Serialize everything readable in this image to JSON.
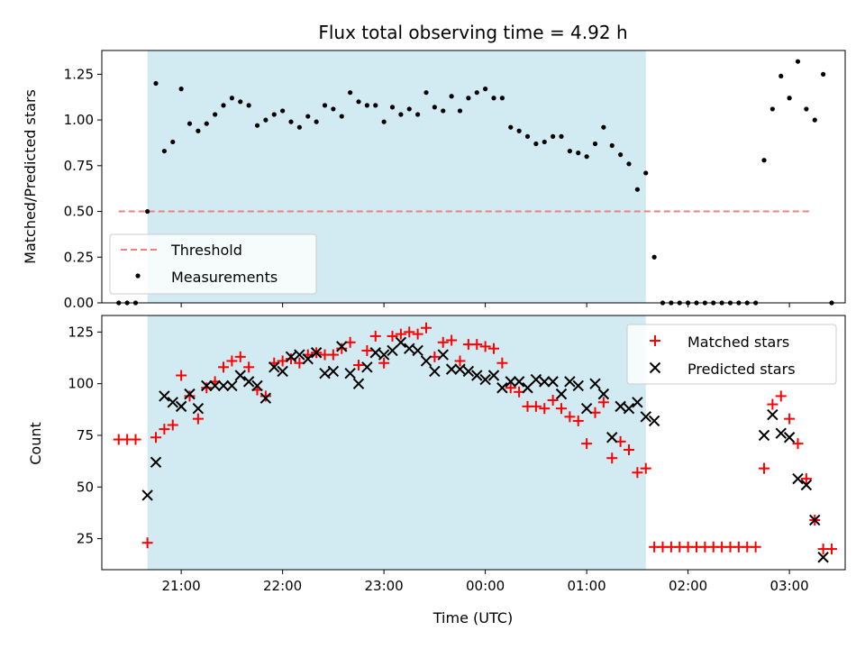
{
  "chart_data": [
    {
      "type": "scatter",
      "title": "Flux total observing time = 4.92 h",
      "xlabel": "",
      "ylabel": "Matched/Predicted stars",
      "ylim": [
        0,
        1.38
      ],
      "xlim": [
        "20:13",
        "03:33"
      ],
      "shaded_span": [
        "20:40",
        "01:35"
      ],
      "shaded_color": "#add8e6",
      "yticks": [
        "0.00",
        "0.25",
        "0.50",
        "0.75",
        "1.00",
        "1.25"
      ],
      "grid": false,
      "legend_position": "lower-left",
      "threshold": {
        "name": "Threshold",
        "value": 0.5,
        "x_range": [
          "20:23",
          "03:13"
        ],
        "color": "#f08080"
      },
      "series": [
        {
          "name": "Measurements",
          "color": "#000000",
          "points": [
            [
              "20:23",
              0
            ],
            [
              "20:28",
              0
            ],
            [
              "20:33",
              0
            ],
            [
              "20:40",
              0.5
            ],
            [
              "20:45",
              1.2
            ],
            [
              "20:50",
              0.83
            ],
            [
              "20:55",
              0.88
            ],
            [
              "21:00",
              1.17
            ],
            [
              "21:05",
              0.98
            ],
            [
              "21:10",
              0.94
            ],
            [
              "21:15",
              0.98
            ],
            [
              "21:20",
              1.03
            ],
            [
              "21:25",
              1.08
            ],
            [
              "21:30",
              1.12
            ],
            [
              "21:35",
              1.1
            ],
            [
              "21:40",
              1.08
            ],
            [
              "21:45",
              0.97
            ],
            [
              "21:50",
              1.0
            ],
            [
              "21:55",
              1.03
            ],
            [
              "22:00",
              1.05
            ],
            [
              "22:05",
              0.99
            ],
            [
              "22:10",
              0.96
            ],
            [
              "22:15",
              1.02
            ],
            [
              "22:20",
              0.99
            ],
            [
              "22:25",
              1.08
            ],
            [
              "22:30",
              1.06
            ],
            [
              "22:35",
              1.02
            ],
            [
              "22:40",
              1.15
            ],
            [
              "22:45",
              1.1
            ],
            [
              "22:50",
              1.08
            ],
            [
              "22:55",
              1.08
            ],
            [
              "23:00",
              0.99
            ],
            [
              "23:05",
              1.07
            ],
            [
              "23:10",
              1.03
            ],
            [
              "23:15",
              1.06
            ],
            [
              "23:20",
              1.03
            ],
            [
              "23:25",
              1.15
            ],
            [
              "23:30",
              1.07
            ],
            [
              "23:35",
              1.05
            ],
            [
              "23:40",
              1.13
            ],
            [
              "23:45",
              1.05
            ],
            [
              "23:50",
              1.12
            ],
            [
              "23:55",
              1.15
            ],
            [
              "00:00",
              1.17
            ],
            [
              "00:05",
              1.12
            ],
            [
              "00:10",
              1.12
            ],
            [
              "00:15",
              0.96
            ],
            [
              "00:20",
              0.94
            ],
            [
              "00:25",
              0.91
            ],
            [
              "00:30",
              0.87
            ],
            [
              "00:35",
              0.88
            ],
            [
              "00:40",
              0.91
            ],
            [
              "00:45",
              0.91
            ],
            [
              "00:50",
              0.83
            ],
            [
              "00:55",
              0.82
            ],
            [
              "01:00",
              0.8
            ],
            [
              "01:05",
              0.87
            ],
            [
              "01:10",
              0.96
            ],
            [
              "01:15",
              0.86
            ],
            [
              "01:20",
              0.81
            ],
            [
              "01:25",
              0.76
            ],
            [
              "01:30",
              0.62
            ],
            [
              "01:35",
              0.71
            ],
            [
              "01:40",
              0.25
            ],
            [
              "01:45",
              0
            ],
            [
              "01:50",
              0
            ],
            [
              "01:55",
              0
            ],
            [
              "02:00",
              0
            ],
            [
              "02:05",
              0
            ],
            [
              "02:10",
              0
            ],
            [
              "02:15",
              0
            ],
            [
              "02:20",
              0
            ],
            [
              "02:25",
              0
            ],
            [
              "02:30",
              0
            ],
            [
              "02:35",
              0
            ],
            [
              "02:40",
              0
            ],
            [
              "02:45",
              0.78
            ],
            [
              "02:50",
              1.06
            ],
            [
              "02:55",
              1.24
            ],
            [
              "03:00",
              1.12
            ],
            [
              "03:05",
              1.32
            ],
            [
              "03:10",
              1.06
            ],
            [
              "03:15",
              1.0
            ],
            [
              "03:20",
              1.25
            ],
            [
              "03:25",
              0
            ]
          ]
        }
      ]
    },
    {
      "type": "scatter",
      "title": "",
      "xlabel": "Time (UTC)",
      "ylabel": "Count",
      "ylim": [
        10,
        133
      ],
      "xlim": [
        "20:13",
        "03:33"
      ],
      "shaded_span": [
        "20:40",
        "01:35"
      ],
      "shaded_color": "#add8e6",
      "yticks": [
        "25",
        "50",
        "75",
        "100",
        "125"
      ],
      "xticks": [
        "21:00",
        "22:00",
        "23:00",
        "00:00",
        "01:00",
        "02:00",
        "03:00"
      ],
      "grid": false,
      "legend_position": "top-right",
      "series": [
        {
          "name": "Matched stars",
          "marker": "+",
          "color": "#ff0000",
          "points": [
            [
              "20:23",
              73
            ],
            [
              "20:28",
              73
            ],
            [
              "20:33",
              73
            ],
            [
              "20:40",
              23
            ],
            [
              "20:45",
              74
            ],
            [
              "20:50",
              78
            ],
            [
              "20:55",
              80
            ],
            [
              "21:00",
              104
            ],
            [
              "21:05",
              94
            ],
            [
              "21:10",
              83
            ],
            [
              "21:15",
              98
            ],
            [
              "21:20",
              101
            ],
            [
              "21:25",
              108
            ],
            [
              "21:30",
              111
            ],
            [
              "21:35",
              113
            ],
            [
              "21:40",
              108
            ],
            [
              "21:45",
              97
            ],
            [
              "21:50",
              94
            ],
            [
              "21:55",
              110
            ],
            [
              "22:00",
              111
            ],
            [
              "22:05",
              112
            ],
            [
              "22:10",
              110
            ],
            [
              "22:15",
              114
            ],
            [
              "22:20",
              115
            ],
            [
              "22:25",
              114
            ],
            [
              "22:30",
              114
            ],
            [
              "22:35",
              117
            ],
            [
              "22:40",
              120
            ],
            [
              "22:45",
              109
            ],
            [
              "22:50",
              116
            ],
            [
              "22:55",
              123
            ],
            [
              "23:00",
              110
            ],
            [
              "23:05",
              123
            ],
            [
              "23:10",
              124
            ],
            [
              "23:15",
              125
            ],
            [
              "23:20",
              124
            ],
            [
              "23:25",
              127
            ],
            [
              "23:30",
              113
            ],
            [
              "23:35",
              120
            ],
            [
              "23:40",
              121
            ],
            [
              "23:45",
              111
            ],
            [
              "23:50",
              119
            ],
            [
              "23:55",
              119
            ],
            [
              "00:00",
              118
            ],
            [
              "00:05",
              117
            ],
            [
              "00:10",
              110
            ],
            [
              "00:15",
              98
            ],
            [
              "00:20",
              96
            ],
            [
              "00:25",
              89
            ],
            [
              "00:30",
              89
            ],
            [
              "00:35",
              88
            ],
            [
              "00:40",
              92
            ],
            [
              "00:45",
              88
            ],
            [
              "00:50",
              84
            ],
            [
              "00:55",
              82
            ],
            [
              "01:00",
              71
            ],
            [
              "01:05",
              86
            ],
            [
              "01:10",
              91
            ],
            [
              "01:15",
              64
            ],
            [
              "01:20",
              72
            ],
            [
              "01:25",
              68
            ],
            [
              "01:30",
              57
            ],
            [
              "01:35",
              59
            ],
            [
              "01:40",
              21
            ],
            [
              "01:45",
              21
            ],
            [
              "01:50",
              21
            ],
            [
              "01:55",
              21
            ],
            [
              "02:00",
              21
            ],
            [
              "02:05",
              21
            ],
            [
              "02:10",
              21
            ],
            [
              "02:15",
              21
            ],
            [
              "02:20",
              21
            ],
            [
              "02:25",
              21
            ],
            [
              "02:30",
              21
            ],
            [
              "02:35",
              21
            ],
            [
              "02:40",
              21
            ],
            [
              "02:45",
              59
            ],
            [
              "02:50",
              90
            ],
            [
              "02:55",
              94
            ],
            [
              "03:00",
              83
            ],
            [
              "03:05",
              71
            ],
            [
              "03:10",
              54
            ],
            [
              "03:15",
              34
            ],
            [
              "03:20",
              20
            ],
            [
              "03:25",
              20
            ]
          ]
        },
        {
          "name": "Predicted stars",
          "marker": "x",
          "color": "#000000",
          "points": [
            [
              "20:40",
              46
            ],
            [
              "20:45",
              62
            ],
            [
              "20:50",
              94
            ],
            [
              "20:55",
              91
            ],
            [
              "21:00",
              89
            ],
            [
              "21:05",
              95
            ],
            [
              "21:10",
              88
            ],
            [
              "21:15",
              99
            ],
            [
              "21:20",
              99
            ],
            [
              "21:25",
              99
            ],
            [
              "21:30",
              99
            ],
            [
              "21:35",
              104
            ],
            [
              "21:40",
              101
            ],
            [
              "21:45",
              99
            ],
            [
              "21:50",
              93
            ],
            [
              "21:55",
              108
            ],
            [
              "22:00",
              106
            ],
            [
              "22:05",
              113
            ],
            [
              "22:10",
              114
            ],
            [
              "22:15",
              112
            ],
            [
              "22:20",
              115
            ],
            [
              "22:25",
              105
            ],
            [
              "22:30",
              106
            ],
            [
              "22:35",
              118
            ],
            [
              "22:40",
              105
            ],
            [
              "22:45",
              100
            ],
            [
              "22:50",
              108
            ],
            [
              "22:55",
              115
            ],
            [
              "23:00",
              114
            ],
            [
              "23:05",
              116
            ],
            [
              "23:10",
              120
            ],
            [
              "23:15",
              117
            ],
            [
              "23:20",
              116
            ],
            [
              "23:25",
              111
            ],
            [
              "23:30",
              106
            ],
            [
              "23:35",
              114
            ],
            [
              "23:40",
              107
            ],
            [
              "23:45",
              107
            ],
            [
              "23:50",
              106
            ],
            [
              "23:55",
              104
            ],
            [
              "00:00",
              102
            ],
            [
              "00:05",
              104
            ],
            [
              "00:10",
              98
            ],
            [
              "00:15",
              101
            ],
            [
              "00:20",
              101
            ],
            [
              "00:25",
              98
            ],
            [
              "00:30",
              102
            ],
            [
              "00:35",
              101
            ],
            [
              "00:40",
              101
            ],
            [
              "00:45",
              95
            ],
            [
              "00:50",
              101
            ],
            [
              "00:55",
              99
            ],
            [
              "01:00",
              88
            ],
            [
              "01:05",
              100
            ],
            [
              "01:10",
              95
            ],
            [
              "01:15",
              74
            ],
            [
              "01:20",
              89
            ],
            [
              "01:25",
              88
            ],
            [
              "01:30",
              91
            ],
            [
              "01:35",
              84
            ],
            [
              "01:40",
              82
            ],
            [
              "02:45",
              75
            ],
            [
              "02:50",
              85
            ],
            [
              "02:55",
              76
            ],
            [
              "03:00",
              74
            ],
            [
              "03:05",
              54
            ],
            [
              "03:10",
              51
            ],
            [
              "03:15",
              34
            ],
            [
              "03:20",
              16
            ]
          ]
        }
      ]
    }
  ]
}
